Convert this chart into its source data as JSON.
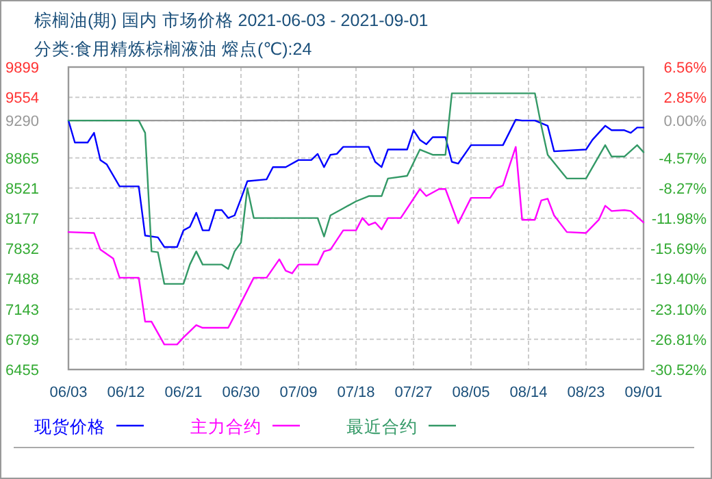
{
  "chart_data": {
    "type": "line",
    "title": "棕榈油(期) 国内 市场价格 2021-06-03 - 2021-09-01",
    "subtitle": "分类:食用精炼棕榈液油 熔点(℃):24",
    "xlim": [
      "--06-03",
      "--09-01"
    ],
    "xticks": [
      {
        "value": "--06-03",
        "label": "06/03"
      },
      {
        "value": "--06-12",
        "label": "06/12"
      },
      {
        "value": "--06-21",
        "label": "06/21"
      },
      {
        "value": "--06-30",
        "label": "06/30"
      },
      {
        "value": "--07-09",
        "label": "07/09"
      },
      {
        "value": "--07-18",
        "label": "07/18"
      },
      {
        "value": "--07-27",
        "label": "07/27"
      },
      {
        "value": "--08-05",
        "label": "08/05"
      },
      {
        "value": "--08-14",
        "label": "08/14"
      },
      {
        "value": "--08-23",
        "label": "08/23"
      },
      {
        "value": "--09-01",
        "label": "09/01"
      }
    ],
    "ylim": [
      6455,
      9899
    ],
    "yticks": [
      9899,
      9554,
      9290,
      8865,
      8521,
      8177,
      7832,
      7488,
      7143,
      6799,
      6455
    ],
    "y2lim": [
      -30.52,
      6.56
    ],
    "y2ticks": [
      {
        "value": 6.56,
        "label": "6.56%"
      },
      {
        "value": 2.85,
        "label": "2.85%"
      },
      {
        "value": 0,
        "label": "0.00%"
      },
      {
        "value": -4.57,
        "label": "-4.57%"
      },
      {
        "value": -8.27,
        "label": "-8.27%"
      },
      {
        "value": -11.98,
        "label": "-11.98%"
      },
      {
        "value": -15.69,
        "label": "-15.69%"
      },
      {
        "value": -19.4,
        "label": "-19.40%"
      },
      {
        "value": -23.1,
        "label": "-23.10%"
      },
      {
        "value": -26.81,
        "label": "-26.81%"
      },
      {
        "value": -30.52,
        "label": "-30.52%"
      }
    ],
    "ref_lines": [
      {
        "axis": "y",
        "value": 9290,
        "color": "#999999"
      }
    ],
    "grid": true,
    "legend": "bottom",
    "series": [
      {
        "name": "现货价格",
        "color": "#0000ff",
        "x": [
          "--06-03",
          "--06-04",
          "--06-06",
          "--06-07",
          "--06-08",
          "--06-09",
          "--06-11",
          "--06-14",
          "--06-15",
          "--06-17",
          "--06-18",
          "--06-20",
          "--06-21",
          "--06-22",
          "--06-23",
          "--06-24",
          "--06-25",
          "--06-26",
          "--06-27",
          "--06-28",
          "--06-29",
          "--06-30",
          "--07-01",
          "--07-04",
          "--07-05",
          "--07-07",
          "--07-09",
          "--07-11",
          "--07-12",
          "--07-13",
          "--07-14",
          "--07-15",
          "--07-16",
          "--07-18",
          "--07-20",
          "--07-21",
          "--07-22",
          "--07-23",
          "--07-26",
          "--07-27",
          "--07-28",
          "--07-29",
          "--07-30",
          "--08-01",
          "--08-02",
          "--08-03",
          "--08-05",
          "--08-10",
          "--08-12",
          "--08-13",
          "--08-15",
          "--08-17",
          "--08-18",
          "--08-23",
          "--08-24",
          "--08-26",
          "--08-27",
          "--08-29",
          "--08-30",
          "--08-31",
          "--09-01"
        ],
        "values": [
          9290,
          9040,
          9040,
          9150,
          8840,
          8790,
          8540,
          8540,
          7980,
          7960,
          7850,
          7850,
          8040,
          8080,
          8240,
          8040,
          8040,
          8270,
          8270,
          8180,
          8210,
          8400,
          8600,
          8620,
          8760,
          8760,
          8840,
          8840,
          8910,
          8760,
          8900,
          8910,
          8990,
          8990,
          8990,
          8820,
          8760,
          8960,
          8960,
          9180,
          9070,
          9020,
          9100,
          9100,
          8820,
          8800,
          9010,
          9010,
          9300,
          9290,
          9290,
          9230,
          8940,
          8960,
          9070,
          9230,
          9180,
          9180,
          9150,
          9210,
          9210
        ]
      },
      {
        "name": "主力合约",
        "color": "#ff00ff",
        "x": [
          "--06-03",
          "--06-07",
          "--06-08",
          "--06-10",
          "--06-11",
          "--06-14",
          "--06-15",
          "--06-16",
          "--06-18",
          "--06-20",
          "--06-21",
          "--06-23",
          "--06-24",
          "--06-28",
          "--06-29",
          "--07-02",
          "--07-04",
          "--07-06",
          "--07-07",
          "--07-08",
          "--07-09",
          "--07-12",
          "--07-13",
          "--07-14",
          "--07-16",
          "--07-18",
          "--07-19",
          "--07-20",
          "--07-21",
          "--07-22",
          "--07-23",
          "--07-25",
          "--07-28",
          "--07-29",
          "--07-31",
          "--08-01",
          "--08-03",
          "--08-05",
          "--08-08",
          "--08-09",
          "--08-10",
          "--08-12",
          "--08-13",
          "--08-15",
          "--08-16",
          "--08-17",
          "--08-18",
          "--08-20",
          "--08-23",
          "--08-25",
          "--08-26",
          "--08-27",
          "--08-29",
          "--08-30",
          "--09-01"
        ],
        "values": [
          8020,
          8010,
          7820,
          7720,
          7500,
          7500,
          7000,
          7000,
          6740,
          6740,
          6820,
          6960,
          6930,
          6930,
          7070,
          7500,
          7500,
          7710,
          7580,
          7550,
          7650,
          7650,
          7800,
          7820,
          8040,
          8040,
          8180,
          8100,
          8130,
          8050,
          8180,
          8180,
          8510,
          8430,
          8510,
          8510,
          8120,
          8410,
          8410,
          8520,
          8550,
          8990,
          8160,
          8160,
          8380,
          8400,
          8210,
          8020,
          8010,
          8160,
          8320,
          8260,
          8270,
          8260,
          8130
        ]
      },
      {
        "name": "最近合约",
        "color": "#339966",
        "x": [
          "--06-03",
          "--06-14",
          "--06-15",
          "--06-16",
          "--06-17",
          "--06-18",
          "--06-21",
          "--06-22",
          "--06-23",
          "--06-24",
          "--06-27",
          "--06-28",
          "--06-29",
          "--06-30",
          "--07-01",
          "--07-02",
          "--07-12",
          "--07-13",
          "--07-14",
          "--07-16",
          "--07-18",
          "--07-20",
          "--07-22",
          "--07-23",
          "--07-26",
          "--07-28",
          "--07-30",
          "--08-01",
          "--08-02",
          "--08-15",
          "--08-16",
          "--08-17",
          "--08-20",
          "--08-23",
          "--08-26",
          "--08-27",
          "--08-29",
          "--08-31",
          "--09-01"
        ],
        "values": [
          9290,
          9290,
          9150,
          7800,
          7790,
          7430,
          7430,
          7650,
          7800,
          7650,
          7650,
          7600,
          7800,
          7900,
          8520,
          8180,
          8180,
          7970,
          8210,
          8290,
          8370,
          8430,
          8430,
          8630,
          8660,
          8960,
          8900,
          8900,
          9600,
          9600,
          9230,
          8900,
          8630,
          8630,
          9010,
          8880,
          8880,
          9010,
          8930
        ]
      }
    ]
  }
}
